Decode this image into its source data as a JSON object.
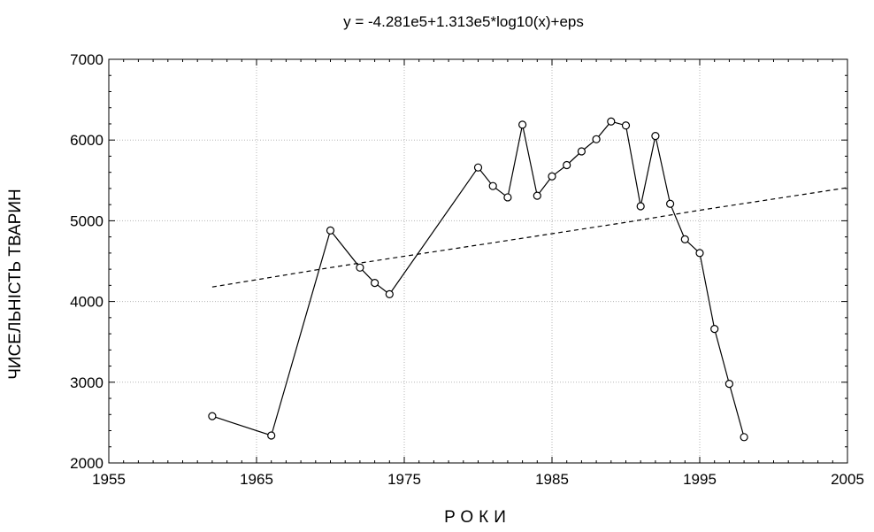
{
  "chart_data": {
    "type": "line",
    "title": "y = -4.281e5+1.313e5*log10(x)+eps",
    "xlabel": "РОКИ",
    "ylabel": "ЧИСЕЛЬНІСТЬ ТВАРИН",
    "xlim": [
      1955,
      2005
    ],
    "ylim": [
      2000,
      7000
    ],
    "x_ticks": [
      "1955",
      "1965",
      "1975",
      "1985",
      "1995",
      "2005"
    ],
    "y_ticks": [
      "2000",
      "3000",
      "4000",
      "5000",
      "6000",
      "7000"
    ],
    "grid": true,
    "series": [
      {
        "style": "solid-markers",
        "color": "#000000",
        "x": [
          1962,
          1966,
          1970,
          1972,
          1973,
          1974,
          1980,
          1981,
          1982,
          1983,
          1984,
          1985,
          1986,
          1987,
          1988,
          1989,
          1990,
          1991,
          1992,
          1993,
          1994,
          1995,
          1996,
          1997,
          1998
        ],
        "y": [
          2580,
          2340,
          4880,
          4420,
          4230,
          4090,
          5660,
          5430,
          5290,
          6190,
          5310,
          5550,
          5690,
          5860,
          6010,
          6230,
          6180,
          5180,
          6050,
          5210,
          4770,
          4600,
          3660,
          2980,
          2320
        ]
      },
      {
        "style": "dashed",
        "color": "#000000",
        "x": [
          1962,
          1965,
          1970,
          1975,
          1980,
          1985,
          1990,
          1995,
          2000,
          2005
        ],
        "y": [
          4180,
          4270,
          4420,
          4560,
          4700,
          4840,
          4980,
          5130,
          5270,
          5410
        ]
      }
    ]
  }
}
